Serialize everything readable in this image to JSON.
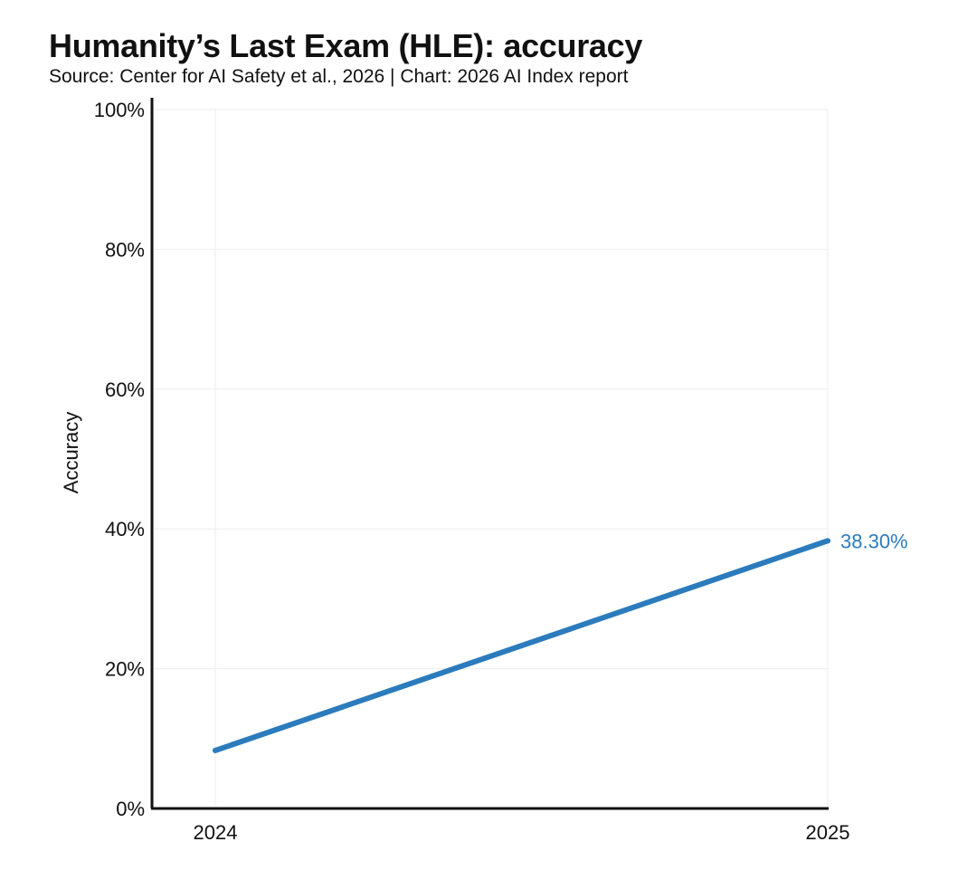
{
  "title": "Humanity’s Last Exam (HLE): accuracy",
  "subtitle": "Source: Center for AI Safety et al., 2026 | Chart: 2026 AI Index report",
  "colors": {
    "line": "#2b7bbd",
    "grid": "#eeeeee",
    "axis": "#111111"
  },
  "chart_data": {
    "type": "line",
    "title": "Humanity’s Last Exam (HLE): accuracy",
    "xlabel": "",
    "ylabel": "Accuracy",
    "x": [
      "2024",
      "2025"
    ],
    "series": [
      {
        "name": "Accuracy",
        "values": [
          8.3,
          38.3
        ]
      }
    ],
    "ylim": [
      0,
      100
    ],
    "yticks": [
      0,
      20,
      40,
      60,
      80,
      100
    ],
    "ytick_labels": [
      "0%",
      "20%",
      "40%",
      "60%",
      "80%",
      "100%"
    ],
    "xtick_labels": [
      "2024",
      "2025"
    ],
    "data_labels": [
      {
        "index": 1,
        "text": "38.30%"
      }
    ],
    "grid": true,
    "legend": "none"
  }
}
